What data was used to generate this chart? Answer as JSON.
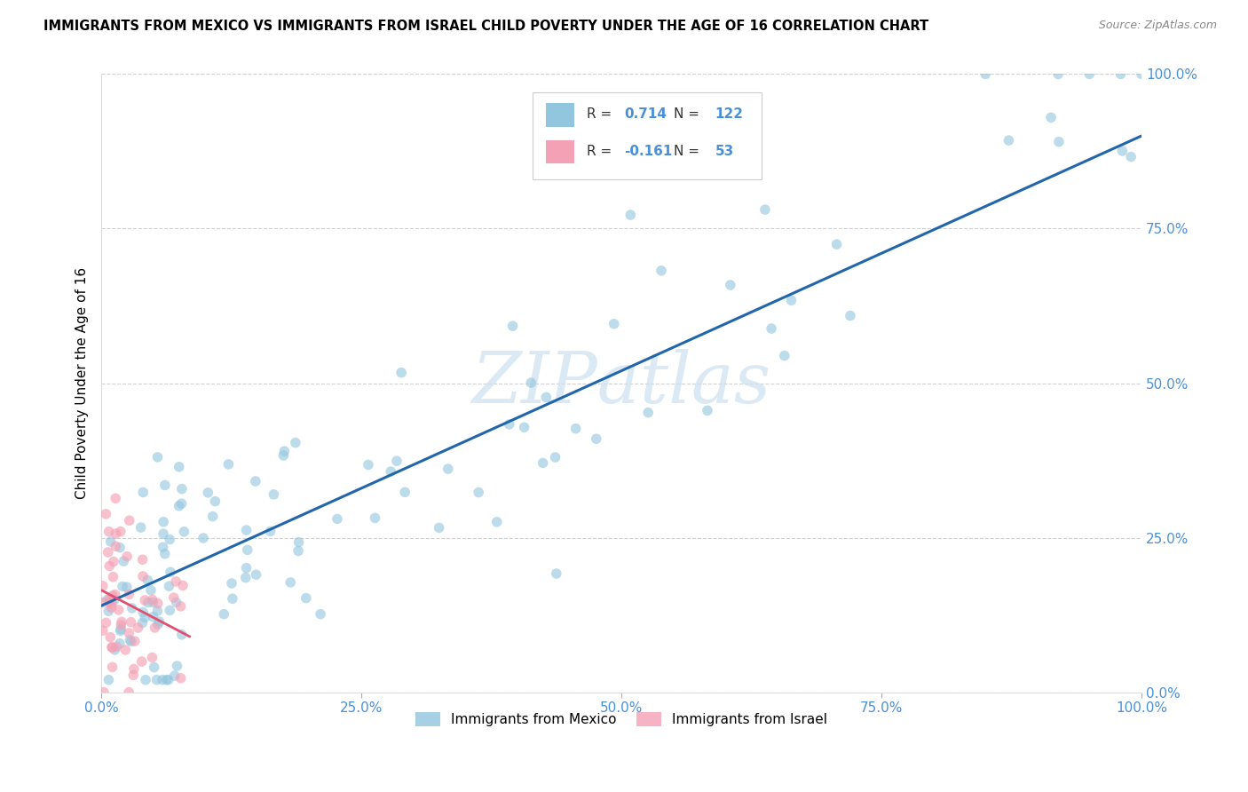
{
  "title": "IMMIGRANTS FROM MEXICO VS IMMIGRANTS FROM ISRAEL CHILD POVERTY UNDER THE AGE OF 16 CORRELATION CHART",
  "source": "Source: ZipAtlas.com",
  "ylabel": "Child Poverty Under the Age of 16",
  "mexico_R": 0.714,
  "mexico_N": 122,
  "israel_R": -0.161,
  "israel_N": 53,
  "mexico_color": "#92c5de",
  "israel_color": "#f4a0b5",
  "mexico_line_color": "#2166ac",
  "israel_line_color": "#e05070",
  "watermark": "ZIPAtlas",
  "xlim": [
    0,
    1
  ],
  "ylim": [
    0,
    1
  ],
  "xticks": [
    0,
    0.25,
    0.5,
    0.75,
    1.0
  ],
  "yticks": [
    0,
    0.25,
    0.5,
    0.75,
    1.0
  ],
  "xtick_labels": [
    "0.0%",
    "25.0%",
    "50.0%",
    "75.0%",
    "100.0%"
  ],
  "ytick_labels": [
    "0.0%",
    "25.0%",
    "50.0%",
    "75.0%",
    "100.0%"
  ],
  "legend_mexico": "Immigrants from Mexico",
  "legend_israel": "Immigrants from Israel",
  "mexico_line_x0": 0.0,
  "mexico_line_y0": 0.14,
  "mexico_line_x1": 1.0,
  "mexico_line_y1": 0.9,
  "israel_line_x0": 0.0,
  "israel_line_y0": 0.165,
  "israel_line_x1": 0.085,
  "israel_line_y1": 0.09
}
